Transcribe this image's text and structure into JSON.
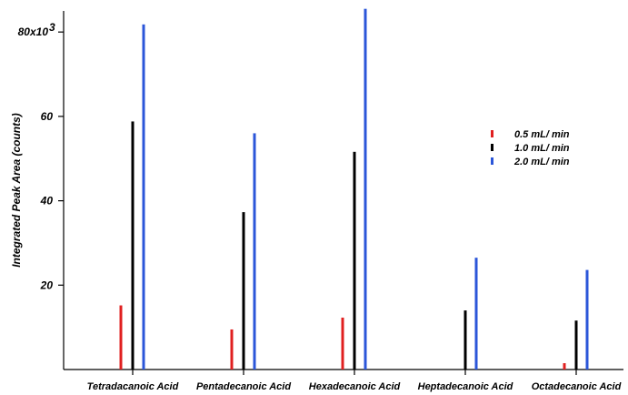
{
  "chart_data": {
    "type": "bar",
    "categories": [
      "Tetradacanoic Acid",
      "Pentadecanoic Acid",
      "Hexadecanoic Acid",
      "Heptadecanoic Acid",
      "Octadecanoic Acid"
    ],
    "series": [
      {
        "name": "0.5 mL/ min",
        "color": "#e02020",
        "values": [
          15.2,
          9.5,
          12.3,
          null,
          1.5
        ]
      },
      {
        "name": "1.0 mL/ min",
        "color": "#000000",
        "values": [
          58.8,
          37.3,
          51.6,
          14.0,
          11.6
        ]
      },
      {
        "name": "2.0 mL/ min",
        "color": "#2b56d9",
        "values": [
          81.8,
          56.0,
          85.5,
          26.5,
          23.6
        ]
      }
    ],
    "ylabel": "Integrated Peak Area (counts)",
    "xlabel": "",
    "ylim": [
      0,
      85
    ],
    "yticks": [
      20,
      40,
      60,
      80
    ],
    "ytick_labels": [
      "20",
      "40",
      "60",
      "80x10"
    ],
    "ytick_top_exponent": "3",
    "legend_position": "right",
    "grid": false
  }
}
